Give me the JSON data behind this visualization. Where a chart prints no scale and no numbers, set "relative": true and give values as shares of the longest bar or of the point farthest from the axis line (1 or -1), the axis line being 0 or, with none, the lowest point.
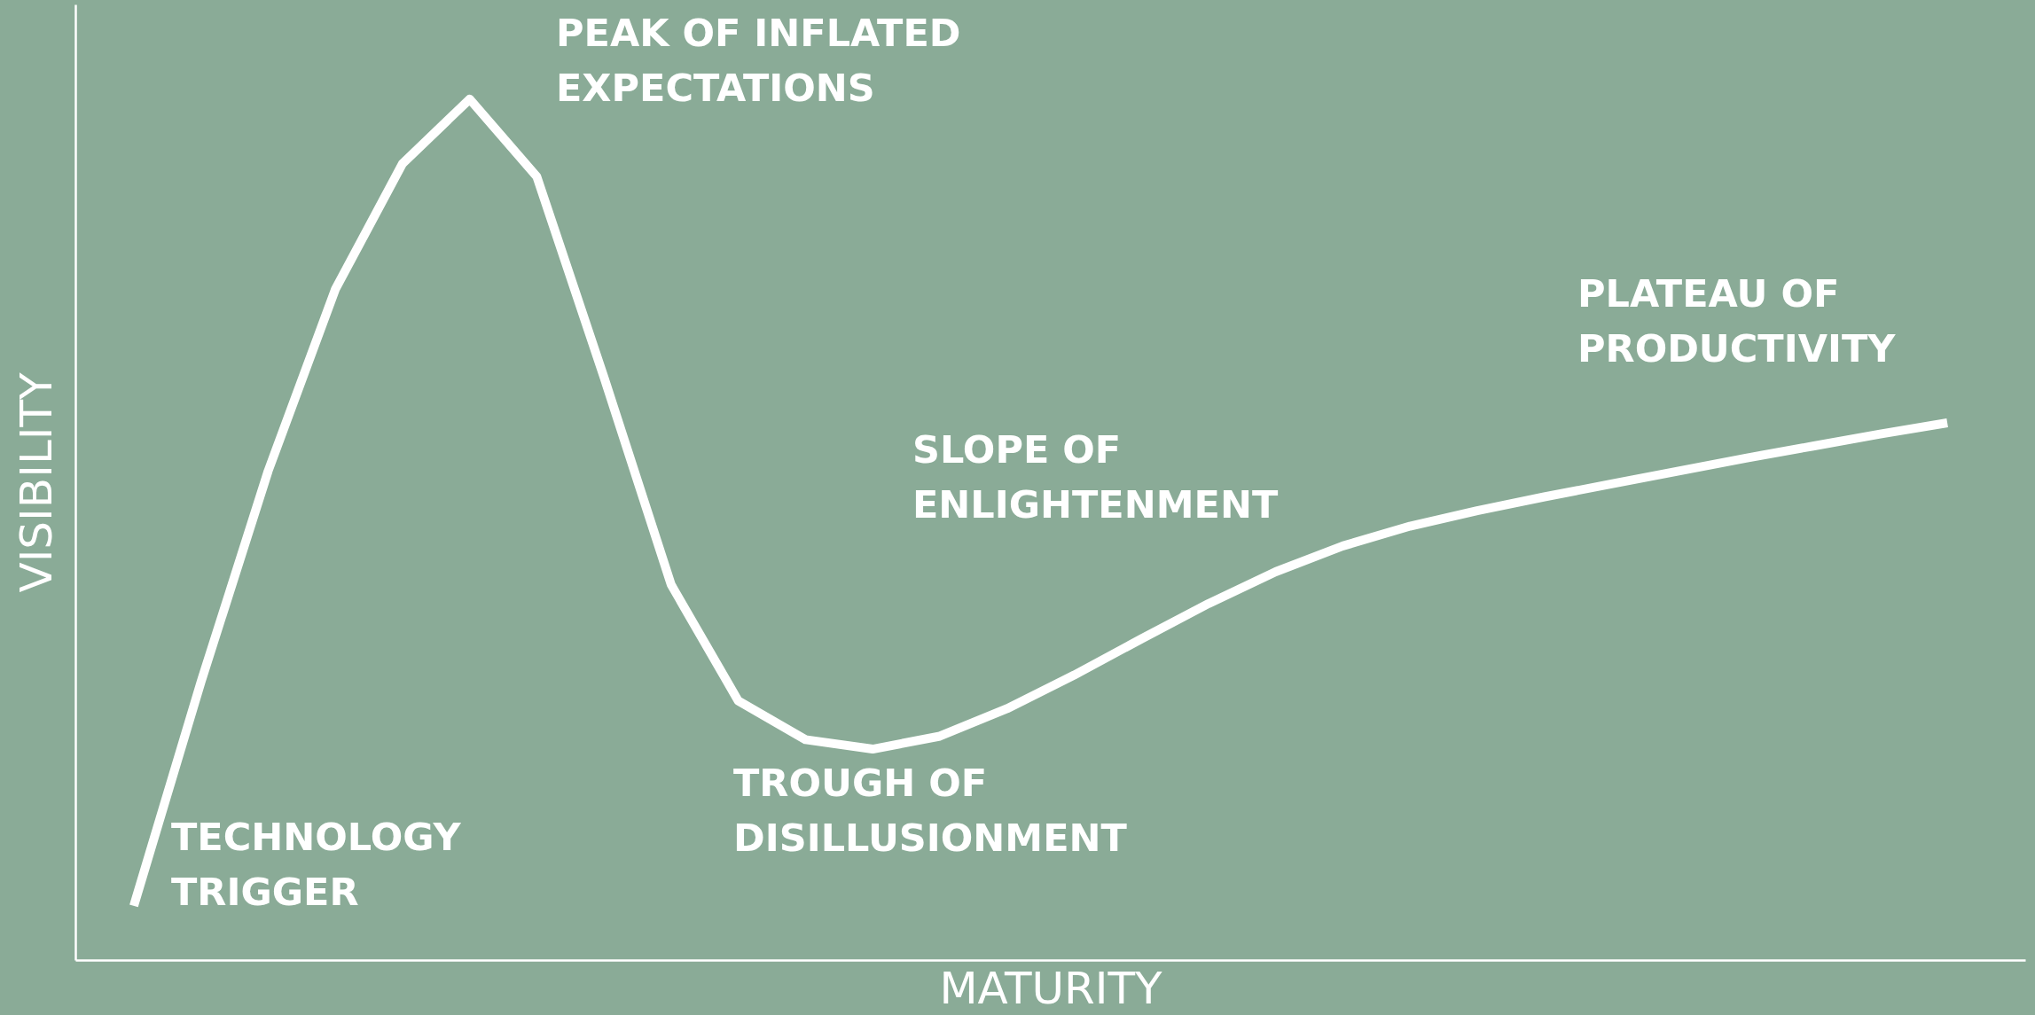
{
  "chart_data": {
    "type": "line",
    "relative": true,
    "xlabel": "MATURITY",
    "ylabel": "VISIBILITY",
    "grid": false,
    "line_style": "solid",
    "categories": [
      null,
      null,
      null,
      null,
      null,
      null,
      null,
      null,
      null,
      null,
      null,
      null,
      null,
      null,
      null,
      null,
      null,
      null,
      null,
      null,
      null,
      null,
      null,
      null,
      null,
      null,
      null,
      null
    ],
    "series": [
      {
        "color": "#ffffff",
        "values": [
          0.063,
          0.323,
          0.568,
          0.779,
          0.925,
          1.0,
          0.91,
          0.677,
          0.436,
          0.301,
          0.256,
          0.245,
          0.26,
          0.292,
          0.331,
          0.373,
          0.414,
          0.451,
          0.481,
          0.504,
          0.522,
          0.538,
          0.553,
          0.568,
          0.583,
          0.597,
          0.611,
          0.624
        ]
      }
    ],
    "annotations": [
      "PEAK OF INFLATED\nEXPECTATIONS",
      "TECHNOLOGY\nTRIGGER",
      "TROUGH OF\nDISILLUSIONMENT",
      "SLOPE OF\nENLIGHTENMENT",
      "PLATEAU OF\nPRODUCTIVITY"
    ]
  }
}
